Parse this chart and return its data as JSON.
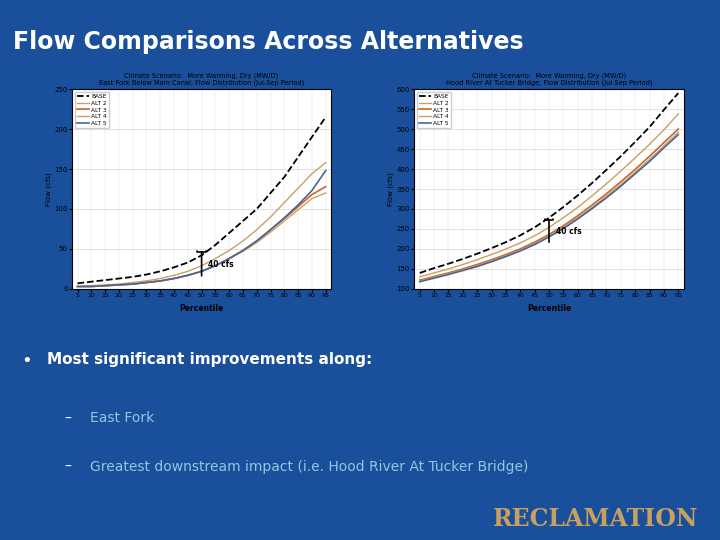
{
  "title": "Flow Comparisons Across Alternatives",
  "title_bg_color": "#1a5ca8",
  "slide_bg_color": "#1a4f9c",
  "chart_bg": "#ffffff",
  "chart1_title1": "Climate Scenario:  More Warming, Dry (MW/D)",
  "chart1_title2": "East Fork Below Main Canal, Flow Distribution (Jul-Sep Period)",
  "chart1_xlabel": "Percentile",
  "chart1_ylabel": "Flow (cfs)",
  "chart1_ylim": [
    0,
    250
  ],
  "chart1_yticks": [
    0,
    50,
    100,
    150,
    200,
    250
  ],
  "chart1_xticks": [
    5,
    10,
    15,
    20,
    25,
    30,
    35,
    40,
    45,
    50,
    55,
    60,
    65,
    70,
    75,
    80,
    85,
    90,
    95
  ],
  "chart1_annotation": "40 cfs",
  "chart2_title1": "Climate Scenario:  More Warming, Dry (MW/D)",
  "chart2_title2": "Hood River At Tucker Bridge, Flow Distribution (Jul-Sep Period)",
  "chart2_xlabel": "Percentile",
  "chart2_ylabel": "Flow (cfs)",
  "chart2_ylim": [
    100,
    600
  ],
  "chart2_yticks": [
    100,
    150,
    200,
    250,
    300,
    350,
    400,
    450,
    500,
    550,
    600
  ],
  "chart2_xticks": [
    5,
    10,
    15,
    20,
    25,
    30,
    35,
    40,
    45,
    50,
    55,
    60,
    65,
    70,
    75,
    80,
    85,
    90,
    95
  ],
  "chart2_annotation": "40 cfs",
  "legend_labels": [
    "BASE",
    "ALT 2",
    "ALT 3",
    "ALT 4",
    "ALT 5"
  ],
  "line_colors": [
    "#000000",
    "#c8a064",
    "#c86428",
    "#c8a064",
    "#4a6496"
  ],
  "line_styles": [
    "--",
    "-",
    "-",
    "-",
    "-"
  ],
  "line_widths": [
    1.3,
    1.0,
    1.2,
    1.0,
    1.2
  ],
  "bullet_text": "Most significant improvements along:",
  "sub_bullet1": "East Fork",
  "sub_bullet2": "Greatest downstream impact (i.e. Hood River At Tucker Bridge)",
  "bullet_color": "#ffffff",
  "sub_bullet_color": "#90c8e0",
  "reclamation_color": "#c8a060",
  "reclamation_text": "RECLAMATION"
}
